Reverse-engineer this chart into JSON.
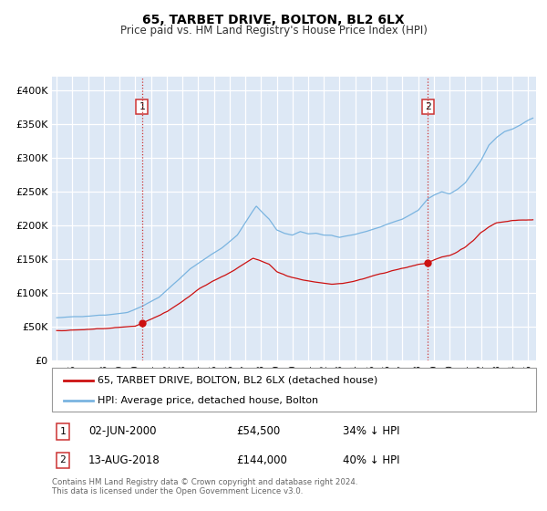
{
  "title": "65, TARBET DRIVE, BOLTON, BL2 6LX",
  "subtitle": "Price paid vs. HM Land Registry's House Price Index (HPI)",
  "xlim": [
    1994.7,
    2025.5
  ],
  "ylim": [
    0,
    420000
  ],
  "yticks": [
    0,
    50000,
    100000,
    150000,
    200000,
    250000,
    300000,
    350000,
    400000
  ],
  "ytick_labels": [
    "£0",
    "£50K",
    "£100K",
    "£150K",
    "£200K",
    "£250K",
    "£300K",
    "£350K",
    "£400K"
  ],
  "xtick_years": [
    1995,
    1996,
    1997,
    1998,
    1999,
    2000,
    2001,
    2002,
    2003,
    2004,
    2005,
    2006,
    2007,
    2008,
    2009,
    2010,
    2011,
    2012,
    2013,
    2014,
    2015,
    2016,
    2017,
    2018,
    2019,
    2020,
    2021,
    2022,
    2023,
    2024,
    2025
  ],
  "hpi_color": "#7ab4e0",
  "price_color": "#cc1111",
  "vline_color": "#cc3333",
  "sale1_year": 2000.42,
  "sale1_price": 54500,
  "sale2_year": 2018.62,
  "sale2_price": 144000,
  "legend_label1": "65, TARBET DRIVE, BOLTON, BL2 6LX (detached house)",
  "legend_label2": "HPI: Average price, detached house, Bolton",
  "table_row1": [
    "1",
    "02-JUN-2000",
    "£54,500",
    "34% ↓ HPI"
  ],
  "table_row2": [
    "2",
    "13-AUG-2018",
    "£144,000",
    "40% ↓ HPI"
  ],
  "footer": "Contains HM Land Registry data © Crown copyright and database right 2024.\nThis data is licensed under the Open Government Licence v3.0.",
  "bg_color": "#dde8f5",
  "fig_bg": "#ffffff"
}
